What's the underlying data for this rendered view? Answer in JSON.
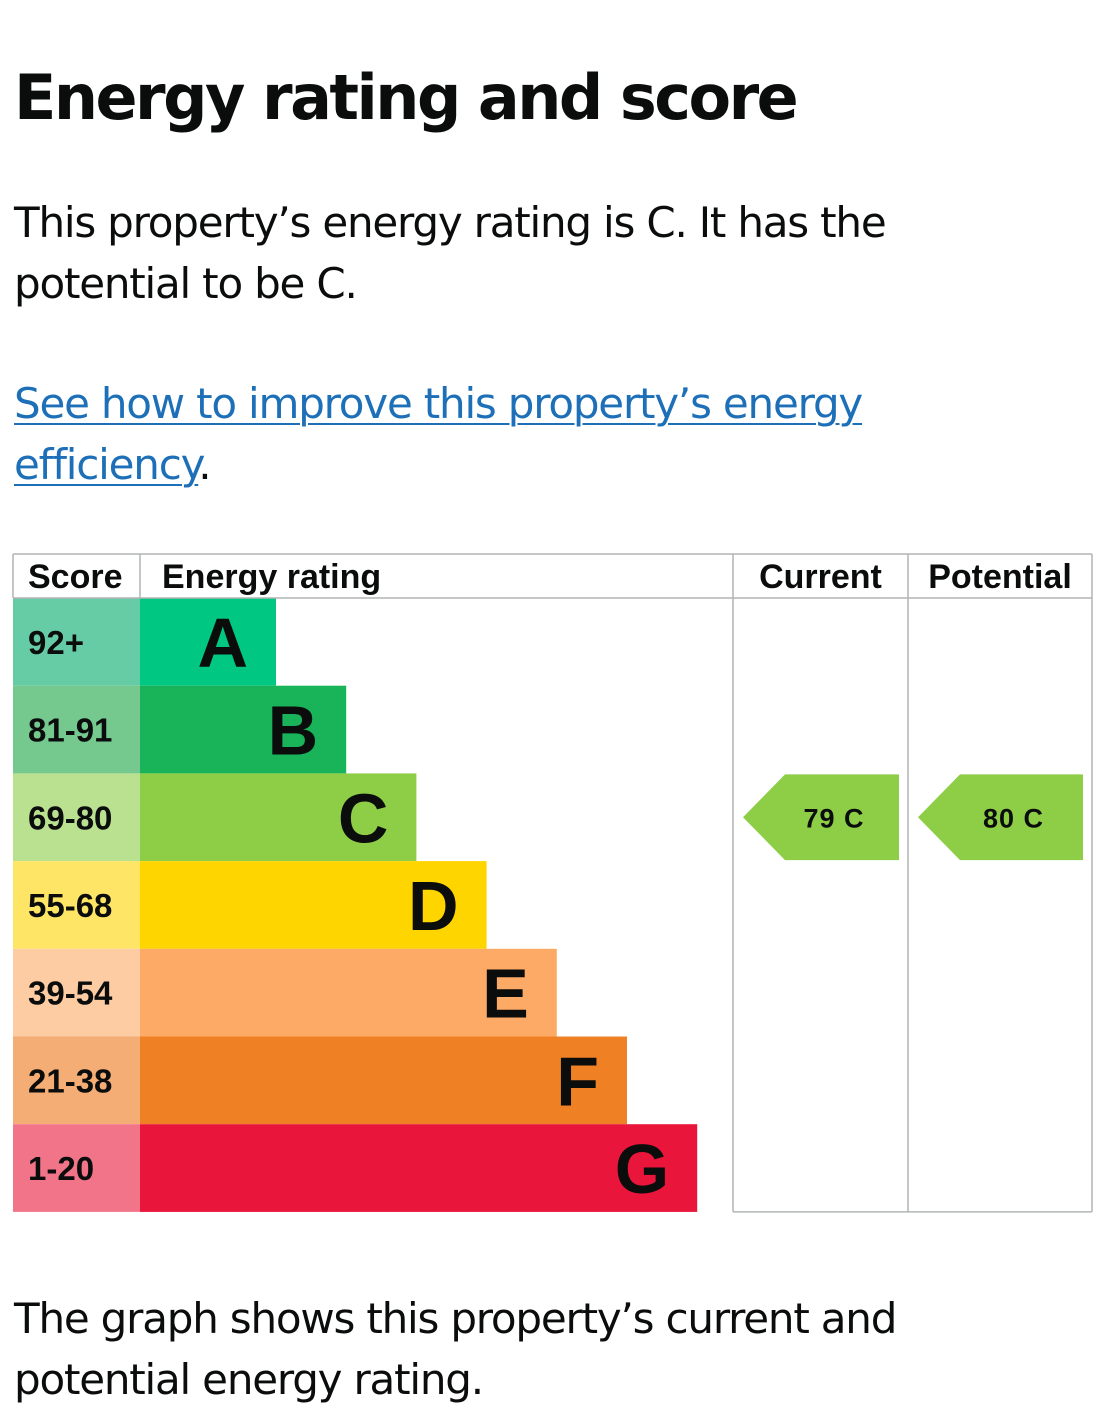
{
  "page": {
    "heading": "Energy rating and score",
    "intro": "This property’s energy rating is C. It has the potential to be C.",
    "link_text": "See how to improve this property’s energy efficiency",
    "link_suffix": ".",
    "footer": "The graph shows this property’s current and potential energy rating."
  },
  "chart_data": {
    "type": "bar",
    "columns": {
      "score": "Score",
      "rating": "Energy rating",
      "current": "Current",
      "potential": "Potential"
    },
    "bands": [
      {
        "letter": "A",
        "score": "92+",
        "color": "#00c781",
        "score_bg": "#66cca6"
      },
      {
        "letter": "B",
        "score": "81-91",
        "color": "#19b459",
        "score_bg": "#75c98f"
      },
      {
        "letter": "C",
        "score": "69-80",
        "color": "#8dce46",
        "score_bg": "#b9e190"
      },
      {
        "letter": "D",
        "score": "55-68",
        "color": "#ffd500",
        "score_bg": "#ffe566"
      },
      {
        "letter": "E",
        "score": "39-54",
        "color": "#fcaa65",
        "score_bg": "#fdcca3"
      },
      {
        "letter": "F",
        "score": "21-38",
        "color": "#ef8023",
        "score_bg": "#f4ad74"
      },
      {
        "letter": "G",
        "score": "1-20",
        "color": "#e9153b",
        "score_bg": "#f27489"
      }
    ],
    "current": {
      "score": 79,
      "band": "C",
      "label": "79  C"
    },
    "potential": {
      "score": 80,
      "band": "C",
      "label": "80  C"
    }
  }
}
